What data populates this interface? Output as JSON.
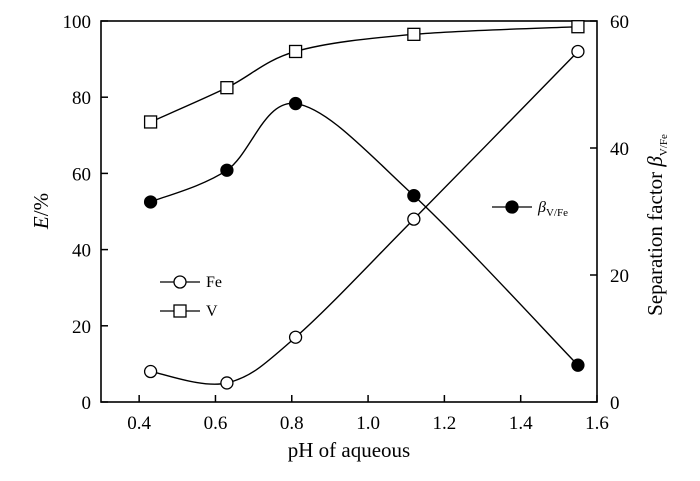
{
  "chart_data": {
    "type": "line",
    "xlabel": "pH of  aqueous",
    "ylabel_left": {
      "symbol": "E",
      "suffix": "/%"
    },
    "ylabel_right": {
      "text": "Separation factor ",
      "symbol": "β",
      "subscript": "V/Fe"
    },
    "xlim": [
      0.3,
      1.6
    ],
    "ylim_left": [
      0,
      100
    ],
    "ylim_right": [
      0,
      60
    ],
    "x_ticks": [
      "0.4",
      "0.6",
      "0.8",
      "1.0",
      "1.2",
      "1.4",
      "1.6"
    ],
    "y_left_ticks": [
      "0",
      "20",
      "40",
      "60",
      "80",
      "100"
    ],
    "y_right_ticks": [
      "0",
      "20",
      "40",
      "60"
    ],
    "grid": false,
    "series": [
      {
        "name": "Fe",
        "axis": "left",
        "marker": "open-circle",
        "x": [
          0.43,
          0.63,
          0.81,
          1.12,
          1.55
        ],
        "y": [
          8,
          5,
          17,
          48,
          92
        ]
      },
      {
        "name": "V",
        "axis": "left",
        "marker": "open-square",
        "x": [
          0.43,
          0.63,
          0.81,
          1.12,
          1.55
        ],
        "y": [
          73.5,
          82.5,
          92,
          96.5,
          98.5
        ]
      },
      {
        "name": "βV/Fe",
        "label": {
          "symbol": "β",
          "subscript": "V/Fe"
        },
        "axis": "right",
        "marker": "filled-circle",
        "x": [
          0.43,
          0.63,
          0.81,
          1.12,
          1.55
        ],
        "y": [
          31.5,
          36.5,
          47,
          32.5,
          5.8
        ]
      }
    ]
  }
}
